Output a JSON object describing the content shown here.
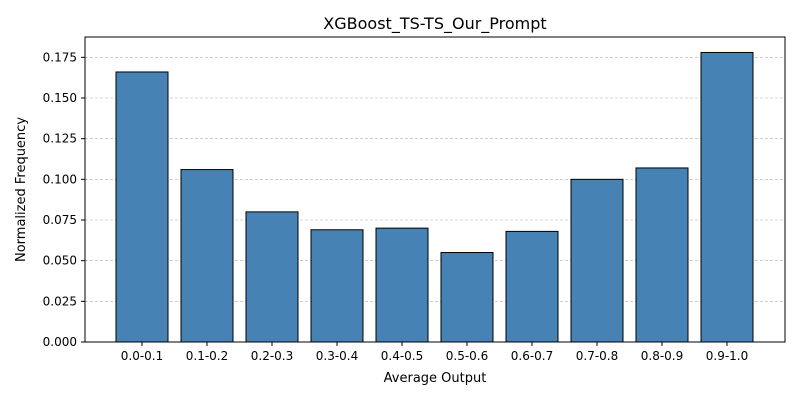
{
  "chart_data": {
    "type": "bar",
    "title": "XGBoost_TS-TS_Our_Prompt",
    "xlabel": "Average Output",
    "ylabel": "Normalized Frequency",
    "categories": [
      "0.0-0.1",
      "0.1-0.2",
      "0.2-0.3",
      "0.3-0.4",
      "0.4-0.5",
      "0.5-0.6",
      "0.6-0.7",
      "0.7-0.8",
      "0.8-0.9",
      "0.9-1.0"
    ],
    "values": [
      0.166,
      0.106,
      0.08,
      0.069,
      0.07,
      0.055,
      0.068,
      0.1,
      0.107,
      0.178
    ],
    "ylim": [
      0,
      0.1875
    ],
    "yticks": [
      "0.000",
      "0.025",
      "0.050",
      "0.075",
      "0.100",
      "0.125",
      "0.150",
      "0.175"
    ],
    "ytick_values": [
      0,
      0.025,
      0.05,
      0.075,
      0.1,
      0.125,
      0.15,
      0.175
    ],
    "grid": "y-dashed",
    "bar_color": "#4682b4",
    "edge_color": "#000000"
  }
}
